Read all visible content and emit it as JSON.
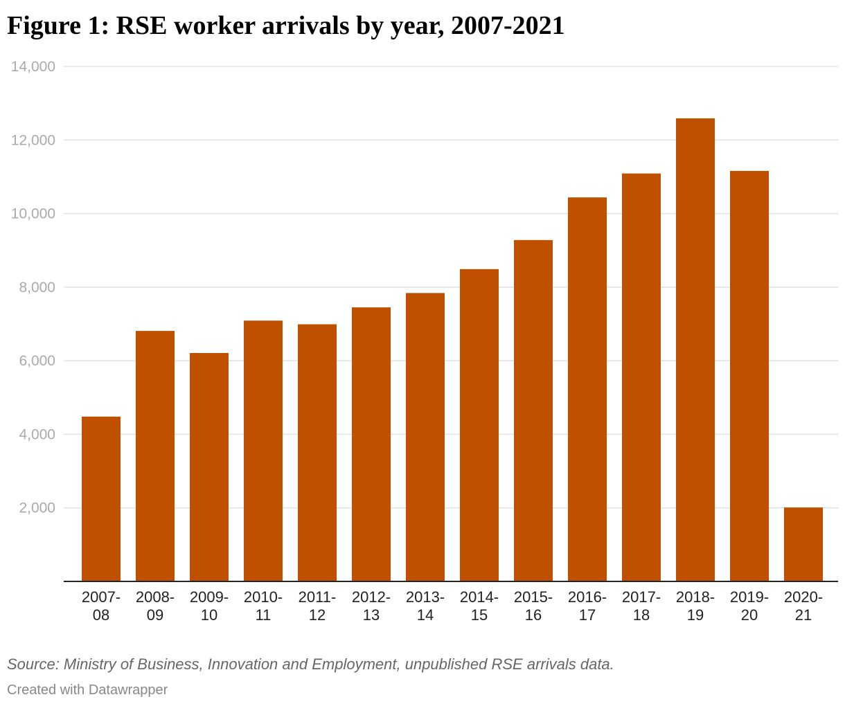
{
  "page": {
    "title": "Figure 1: RSE worker arrivals by year, 2007-2021",
    "source": "Source: Ministry of Business, Innovation and Employment, unpublished RSE arrivals data.",
    "credit": "Created with Datawrapper"
  },
  "chart_data": {
    "type": "bar",
    "title": "Figure 1: RSE worker arrivals by year, 2007-2021",
    "xlabel": "",
    "ylabel": "",
    "categories": [
      [
        "2007-",
        "08"
      ],
      [
        "2008-",
        "09"
      ],
      [
        "2009-",
        "10"
      ],
      [
        "2010-",
        "11"
      ],
      [
        "2011-",
        "12"
      ],
      [
        "2012-",
        "13"
      ],
      [
        "2013-",
        "14"
      ],
      [
        "2014-",
        "15"
      ],
      [
        "2015-",
        "16"
      ],
      [
        "2016-",
        "17"
      ],
      [
        "2017-",
        "18"
      ],
      [
        "2018-",
        "19"
      ],
      [
        "2019-",
        "20"
      ],
      [
        "2020-",
        "21"
      ]
    ],
    "values": [
      4480,
      6810,
      6210,
      7090,
      6990,
      7450,
      7840,
      8490,
      9280,
      10440,
      11090,
      12590,
      11160,
      2010
    ],
    "ylim": [
      0,
      14000
    ],
    "yticks": [
      2000,
      4000,
      6000,
      8000,
      10000,
      12000,
      14000
    ],
    "ytick_labels": [
      "2,000",
      "4,000",
      "6,000",
      "8,000",
      "10,000",
      "12,000",
      "14,000"
    ],
    "grid": true,
    "legend": "none",
    "colors": {
      "bar": "#bf5000",
      "grid": "#e0e0e0",
      "axis": "#222222",
      "ytick_text": "#aaaaaa",
      "xtick_text": "#222222"
    }
  }
}
